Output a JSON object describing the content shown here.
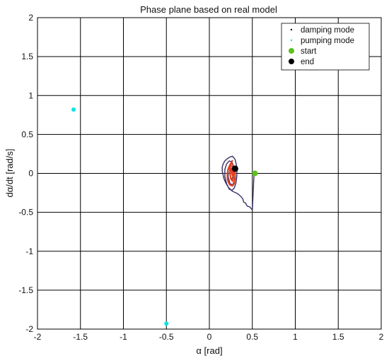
{
  "chart_data": {
    "type": "scatter",
    "title": "Phase plane based on real model",
    "xlabel": "α [rad]",
    "ylabel": "dα/dt [rad/s]",
    "xlim": [
      -2,
      2
    ],
    "ylim": [
      -2,
      2
    ],
    "xticks": [
      -2,
      -1.5,
      -1,
      -0.5,
      0,
      0.5,
      1,
      1.5,
      2
    ],
    "yticks": [
      -2,
      -1.5,
      -1,
      -0.5,
      0,
      0.5,
      1,
      1.5,
      2
    ],
    "xtick_labels": [
      "-2",
      "-1.5",
      "-1",
      "-0.5",
      "0",
      "0.5",
      "1",
      "1.5",
      "2"
    ],
    "ytick_labels": [
      "-2",
      "-1.5",
      "-1",
      "-0.5",
      "0",
      "0.5",
      "1",
      "1.5",
      "2"
    ],
    "grid": true,
    "legend_position": "top-right",
    "legend": [
      {
        "label": "damping mode",
        "marker": "dot",
        "color": "#111111"
      },
      {
        "label": "pumping mode",
        "marker": "dot",
        "color": "#00e5e5"
      },
      {
        "label": "start",
        "marker": "circle",
        "color": "#5ac21a"
      },
      {
        "label": "end",
        "marker": "circle",
        "color": "#000000"
      }
    ],
    "series": [
      {
        "name": "damping mode",
        "color": "#3a2f66",
        "x": [
          0.52,
          0.5,
          0.47,
          0.44,
          0.42,
          0.4,
          0.39,
          0.37,
          0.35,
          0.33,
          0.31,
          0.29,
          0.27,
          0.25,
          0.23,
          0.21,
          0.19,
          0.17,
          0.16,
          0.15,
          0.15,
          0.16,
          0.18,
          0.21,
          0.24,
          0.27,
          0.3,
          0.32,
          0.32,
          0.31,
          0.29,
          0.26,
          0.23,
          0.2,
          0.18,
          0.18,
          0.2,
          0.23,
          0.26,
          0.29,
          0.3,
          0.29,
          0.27,
          0.24,
          0.22,
          0.22,
          0.24,
          0.27,
          0.28,
          0.27,
          0.25,
          0.24,
          0.25,
          0.27
        ],
        "y": [
          0.0,
          -0.47,
          -0.43,
          -0.42,
          -0.38,
          -0.37,
          -0.33,
          -0.3,
          -0.28,
          -0.26,
          -0.25,
          -0.24,
          -0.23,
          -0.21,
          -0.19,
          -0.16,
          -0.12,
          -0.07,
          -0.02,
          0.03,
          0.08,
          0.12,
          0.16,
          0.19,
          0.21,
          0.22,
          0.18,
          0.08,
          -0.03,
          -0.12,
          -0.19,
          -0.22,
          -0.2,
          -0.13,
          -0.04,
          0.05,
          0.12,
          0.16,
          0.15,
          0.08,
          -0.02,
          -0.1,
          -0.15,
          -0.13,
          -0.05,
          0.04,
          0.1,
          0.09,
          0.02,
          -0.06,
          -0.07,
          0.0,
          0.06,
          0.04
        ]
      },
      {
        "name": "pumping mode",
        "color": "#e8401c",
        "x": [
          0.27,
          0.26,
          0.24,
          0.22,
          0.21,
          0.21,
          0.22,
          0.24,
          0.27,
          0.29,
          0.3,
          0.3,
          0.29,
          0.27,
          0.25,
          0.24,
          0.24,
          0.25,
          0.27,
          0.28,
          0.28,
          0.27,
          0.26,
          0.26,
          0.27,
          0.28
        ],
        "y": [
          0.17,
          0.15,
          0.11,
          0.06,
          0.0,
          -0.06,
          -0.11,
          -0.15,
          -0.16,
          -0.13,
          -0.07,
          0.0,
          0.07,
          0.12,
          0.12,
          0.07,
          0.0,
          -0.07,
          -0.1,
          -0.06,
          0.0,
          0.06,
          0.07,
          0.02,
          -0.03,
          0.0
        ]
      }
    ],
    "start": {
      "x": 0.53,
      "y": 0.0
    },
    "end": {
      "x": 0.3,
      "y": 0.06
    },
    "stray_points": [
      {
        "x": -1.58,
        "y": 0.82,
        "color": "#00e5e5"
      },
      {
        "x": -0.5,
        "y": -1.93,
        "color": "#00e5e5"
      }
    ]
  }
}
